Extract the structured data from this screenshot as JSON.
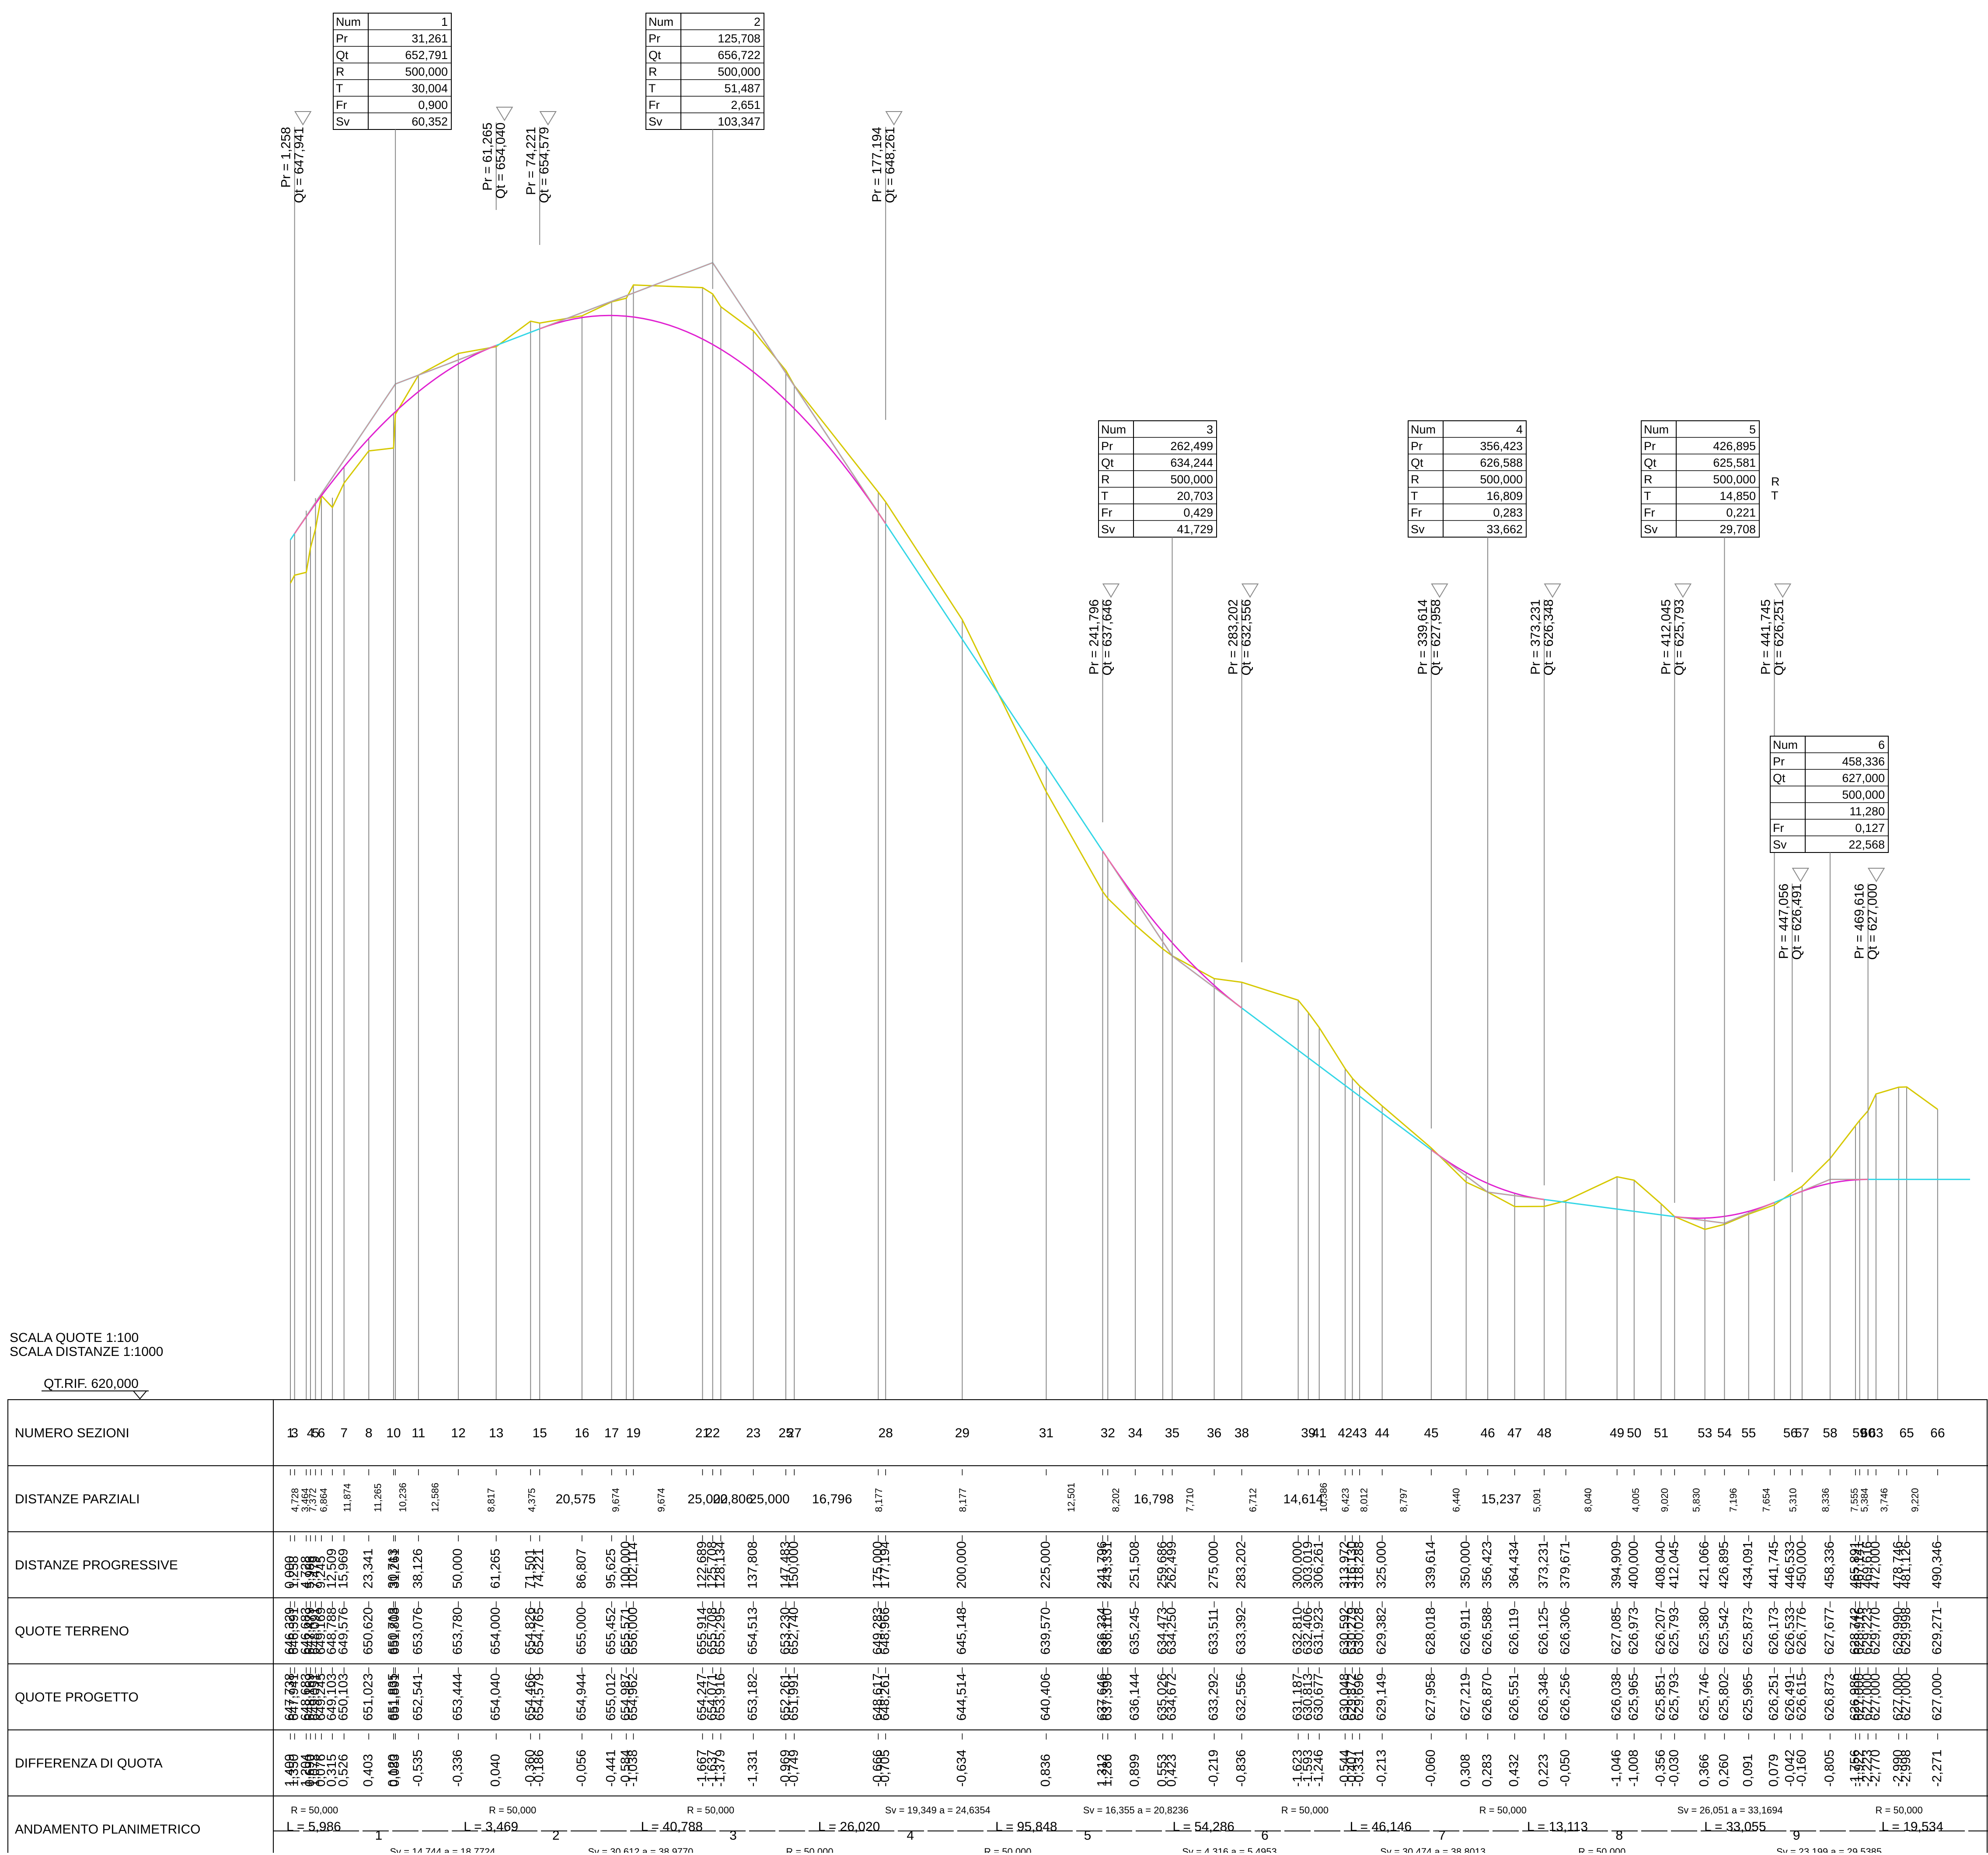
{
  "scale": {
    "heights": "SCALA QUOTE 1:100",
    "distances": "SCALA DISTANZE 1:1000",
    "reference": "QT.RIF. 620,000"
  },
  "colors": {
    "terrain": "#d6c800",
    "tangent": "#f08a8a",
    "grade": "#33d6e6",
    "curve": "#e020d0",
    "grid": "#888888"
  },
  "band_titles": [
    "NUMERO SEZIONI",
    "DISTANZE PARZIALI",
    "DISTANZE PROGRESSIVE",
    "QUOTE TERRENO",
    "QUOTE PROGETTO",
    "DIFFERENZA DI QUOTA",
    "ANDAMENTO PLANIMETRICO"
  ],
  "box_keys": [
    "Num",
    "Pr",
    "Qt",
    "R",
    "T",
    "Fr",
    "Sv"
  ],
  "vertical_curves": [
    {
      "Num": "1",
      "Pr": "31,261",
      "Qt": "652,791",
      "R": "500,000",
      "T": "30,004",
      "Fr": "0,900",
      "Sv": "60,352"
    },
    {
      "Num": "2",
      "Pr": "125,708",
      "Qt": "656,722",
      "R": "500,000",
      "T": "51,487",
      "Fr": "2,651",
      "Sv": "103,347"
    },
    {
      "Num": "3",
      "Pr": "262,499",
      "Qt": "634,244",
      "R": "500,000",
      "T": "20,703",
      "Fr": "0,429",
      "Sv": "41,729"
    },
    {
      "Num": "4",
      "Pr": "356,423",
      "Qt": "626,588",
      "R": "500,000",
      "T": "16,809",
      "Fr": "0,283",
      "Sv": "33,662"
    },
    {
      "Num": "5",
      "Pr": "426,895",
      "Qt": "625,581",
      "R": "500,000",
      "T": "14,850",
      "Fr": "0,221",
      "Sv": "29,708"
    },
    {
      "Num": "6",
      "Pr": "458,336",
      "Qt": "627,000",
      "R": "500,000",
      "T": "11,280",
      "Fr": "0,127",
      "Sv": "22,568"
    }
  ],
  "loose_labels": [
    "R",
    "T"
  ],
  "grade_breaks": [
    {
      "pr": "Pr = 1,258",
      "qt": "Qt = 647,941"
    },
    {
      "pr": "Pr = 61,265",
      "qt": "Qt = 654,040"
    },
    {
      "pr": "Pr = 74,221",
      "qt": "Qt = 654,579"
    },
    {
      "pr": "Pr = 177,194",
      "qt": "Qt = 648,261"
    },
    {
      "pr": "Pr = 241,796",
      "qt": "Qt = 637,646"
    },
    {
      "pr": "Pr = 283,202",
      "qt": "Qt = 632,556"
    },
    {
      "pr": "Pr = 339,614",
      "qt": "Qt = 627,958"
    },
    {
      "pr": "Pr = 373,231",
      "qt": "Qt = 626,348"
    },
    {
      "pr": "Pr = 412,045",
      "qt": "Qt = 625,793"
    },
    {
      "pr": "Pr = 441,745",
      "qt": "Qt = 626,251"
    },
    {
      "pr": "Pr = 447,056",
      "qt": "Qt = 626,491"
    },
    {
      "pr": "Pr = 469,616",
      "qt": "Qt = 627,000"
    }
  ],
  "chart_data": {
    "type": "line",
    "xlabel": "DISTANZE PROGRESSIVE",
    "ylabel": "QUOTE",
    "xlim": [
      0,
      500
    ],
    "ylim": [
      620,
      659
    ],
    "series": [
      {
        "key": "terrain",
        "x": [
          0,
          1.258,
          4.728,
          5.986,
          7.479,
          9.245,
          12.509,
          15.969,
          23.341,
          30.713,
          31.261,
          38.126,
          50,
          61.265,
          71.501,
          74.221,
          86.807,
          95.625,
          100,
          102.114,
          122.689,
          125.708,
          128.134,
          137.808,
          147.483,
          150,
          175,
          177.194,
          200,
          225,
          241.796,
          243.331,
          251.508,
          259.686,
          262.499,
          275,
          283.202,
          300,
          303.019,
          306.261,
          313.972,
          316.13,
          318.288,
          325,
          339.614,
          350,
          356.423,
          364.434,
          373.231,
          379.671,
          394.909,
          400,
          408.04,
          412.045,
          421.066,
          426.895,
          434.091,
          441.745,
          446.533,
          450,
          458.336,
          465.891,
          467.141,
          469.616,
          472,
          478.746,
          481.126,
          490.346
        ],
        "y": [
          646.329,
          646.591,
          646.683,
          647.479,
          648.091,
          649.169,
          648.788,
          649.576,
          650.62,
          650.713,
          651.808,
          653.076,
          653.78,
          654,
          654.826,
          654.765,
          655,
          655.452,
          655.571,
          656,
          655.914,
          655.708,
          655.295,
          654.513,
          653.23,
          652.74,
          649.283,
          648.966,
          645.148,
          639.57,
          636.334,
          636.11,
          635.245,
          634.473,
          634.25,
          633.511,
          633.392,
          632.81,
          632.406,
          631.923,
          630.592,
          630.279,
          630.028,
          629.382,
          628.018,
          626.911,
          626.588,
          626.119,
          626.125,
          626.306,
          627.085,
          626.973,
          626.207,
          625.793,
          625.38,
          625.542,
          625.873,
          626.173,
          626.533,
          626.776,
          627.677,
          628.742,
          628.916,
          629.223,
          629.77,
          629.99,
          629.998,
          629.271
        ]
      },
      {
        "key": "project",
        "x": [
          0,
          1.258,
          4.728,
          5.986,
          7.479,
          9.245,
          12.509,
          15.969,
          23.341,
          30.713,
          31.261,
          38.126,
          50,
          61.265,
          71.501,
          74.221,
          86.807,
          95.625,
          100,
          102.114,
          122.689,
          125.708,
          128.134,
          137.808,
          147.483,
          150,
          175,
          177.194,
          200,
          225,
          241.796,
          243.331,
          251.508,
          259.686,
          262.499,
          275,
          283.202,
          300,
          303.019,
          306.261,
          313.972,
          316.13,
          318.288,
          325,
          339.614,
          350,
          356.423,
          364.434,
          373.231,
          379.671,
          394.909,
          400,
          408.04,
          412.045,
          421.066,
          426.895,
          434.091,
          441.745,
          446.533,
          450,
          458.336,
          465.891,
          467.141,
          469.616,
          472,
          478.746,
          481.126,
          490.346
        ],
        "y": [
          647.738,
          647.941,
          648.683,
          648.169,
          649.091,
          649.245,
          649.103,
          650.103,
          651.023,
          651.835,
          651.891,
          652.541,
          653.444,
          654.04,
          654.466,
          654.579,
          654.944,
          655.012,
          654.987,
          654.962,
          654.247,
          654.071,
          653.916,
          653.182,
          652.261,
          651.991,
          648.617,
          648.261,
          644.514,
          640.406,
          637.646,
          637.396,
          636.144,
          635.026,
          634.672,
          633.292,
          632.556,
          631.187,
          630.813,
          630.677,
          630.048,
          629.872,
          629.696,
          629.149,
          627.958,
          627.219,
          626.87,
          626.551,
          626.348,
          626.256,
          626.038,
          625.965,
          625.851,
          625.793,
          625.746,
          625.802,
          625.965,
          626.251,
          626.491,
          626.615,
          626.873,
          626.986,
          627,
          627,
          627,
          627,
          627,
          627
        ]
      }
    ]
  },
  "sections": {
    "numbers": [
      "1",
      "3",
      "4",
      "5",
      "6",
      "7",
      "8",
      "10",
      "11",
      "12",
      "13",
      "15",
      "16",
      "17",
      "19",
      "21",
      "22",
      "23",
      "25",
      "27",
      "28",
      "29",
      "31",
      "32",
      "34",
      "35",
      "36",
      "38",
      "39",
      "41",
      "42",
      "43",
      "44",
      "45",
      "46",
      "47",
      "48",
      "49",
      "50",
      "51",
      "53",
      "54",
      "55",
      "56",
      "57",
      "58",
      "59",
      "60",
      "63",
      "65",
      "66"
    ],
    "partial_distances": [
      "4,728",
      "3,464",
      "7,372",
      "6,864",
      "11,874",
      "11,265",
      "10,236",
      "12,586",
      "8,817",
      "4,375",
      "20,575",
      "9,674",
      "9,674",
      "25,000",
      "22,806",
      "25,000",
      "16,796",
      "8,177",
      "8,177",
      "12,501",
      "8,202",
      "16,798",
      "7,710",
      "6,712",
      "14,614",
      "10,386",
      "6,423",
      "8,012",
      "8,797",
      "6,440",
      "15,237",
      "5,091",
      "8,040",
      "4,005",
      "9,020",
      "5,830",
      "7,196",
      "7,654",
      "5,310",
      "8,336",
      "7,555",
      "5,384",
      "3,746",
      "9,220"
    ],
    "progressive": [
      "0,000",
      "1,258",
      "4,728",
      "5,986",
      "7,479",
      "9,245",
      "12,509",
      "15,969",
      "23,341",
      "30,713",
      "31,261",
      "38,126",
      "50,000",
      "61,265",
      "71,501",
      "74,221",
      "86,807",
      "95,625",
      "100,000",
      "102,114",
      "122,689",
      "125,708",
      "128,134",
      "137,808",
      "147,483",
      "150,000",
      "175,000",
      "177,194",
      "200,000",
      "225,000",
      "241,796",
      "243,331",
      "251,508",
      "259,686",
      "262,499",
      "275,000",
      "283,202",
      "300,000",
      "303,019",
      "306,261",
      "313,972",
      "316,130",
      "318,288",
      "325,000",
      "339,614",
      "350,000",
      "356,423",
      "364,434",
      "373,231",
      "379,671",
      "394,909",
      "400,000",
      "408,040",
      "412,045",
      "421,066",
      "426,895",
      "434,091",
      "441,745",
      "446,533",
      "450,000",
      "458,336",
      "465,891",
      "467,141",
      "469,616",
      "472,000",
      "478,746",
      "481,126",
      "490,346"
    ],
    "terrain": [
      "646,329",
      "646,591",
      "646,683",
      "647,479",
      "648,091",
      "649,169",
      "648,788",
      "649,576",
      "650,620",
      "650,713",
      "651,808",
      "653,076",
      "653,780",
      "654,000",
      "654,826",
      "654,765",
      "655,000",
      "655,452",
      "655,571",
      "656,000",
      "655,914",
      "655,708",
      "655,295",
      "654,513",
      "653,230",
      "652,740",
      "649,283",
      "648,966",
      "645,148",
      "639,570",
      "636,334",
      "636,110",
      "635,245",
      "634,473",
      "634,250",
      "633,511",
      "633,392",
      "632,810",
      "632,406",
      "631,923",
      "630,592",
      "630,279",
      "630,028",
      "629,382",
      "628,018",
      "626,911",
      "626,588",
      "626,119",
      "626,125",
      "626,306",
      "627,085",
      "626,973",
      "626,207",
      "625,793",
      "625,380",
      "625,542",
      "625,873",
      "626,173",
      "626,533",
      "626,776",
      "627,677",
      "628,742",
      "628,916",
      "629,223",
      "629,770",
      "629,990",
      "629,998",
      "629,271"
    ],
    "project": [
      "647,738",
      "647,941",
      "648,683",
      "648,169",
      "649,091",
      "649,245",
      "649,103",
      "650,103",
      "651,023",
      "651,835",
      "651,891",
      "652,541",
      "653,444",
      "654,040",
      "654,466",
      "654,579",
      "654,944",
      "655,012",
      "654,987",
      "654,962",
      "654,247",
      "654,071",
      "653,916",
      "653,182",
      "652,261",
      "651,991",
      "648,617",
      "648,261",
      "644,514",
      "640,406",
      "637,646",
      "637,396",
      "636,144",
      "635,026",
      "634,672",
      "633,292",
      "632,556",
      "631,187",
      "630,813",
      "630,677",
      "630,048",
      "629,872",
      "629,696",
      "629,149",
      "627,958",
      "627,219",
      "626,870",
      "626,551",
      "626,348",
      "626,256",
      "626,038",
      "625,965",
      "625,851",
      "625,793",
      "625,746",
      "625,802",
      "625,965",
      "626,251",
      "626,491",
      "626,615",
      "626,873",
      "626,986",
      "627,000",
      "627,000",
      "627,000",
      "627,000",
      "627,000",
      "627,000"
    ],
    "difference": [
      "1,409",
      "1,350",
      "1,204",
      "0,690",
      "1,078",
      "0,076",
      "0,315",
      "0,526",
      "0,403",
      "0,120",
      "0,083",
      "-0,535",
      "-0,336",
      "0,040",
      "-0,360",
      "-0,186",
      "-0,056",
      "-0,441",
      "-0,584",
      "-1,038",
      "-1,667",
      "-1,637",
      "-1,379",
      "-1,331",
      "-0,969",
      "-0,749",
      "-0,666",
      "-0,705",
      "-0,634",
      "0,836",
      "1,312",
      "1,286",
      "0,899",
      "0,553",
      "0,423",
      "-0,219",
      "-0,836",
      "-1,623",
      "-1,593",
      "-1,246",
      "-0,544",
      "-0,407",
      "-0,331",
      "-0,213",
      "-0,060",
      "0,308",
      "0,283",
      "0,432",
      "0,223",
      "-0,050",
      "-1,046",
      "-1,008",
      "-0,356",
      "-0,030",
      "0,366",
      "0,260",
      "0,091",
      "0,079",
      "-0,042",
      "-0,160",
      "-0,805",
      "-1,756",
      "-1,922",
      "-2,223",
      "-2,770",
      "-2,990",
      "-2,998",
      "-2,271"
    ]
  },
  "planimetry": {
    "elements": [
      "L = 5,986",
      "1",
      "L = 3,469",
      "2",
      "L = 40,788",
      "3",
      "L = 26,020",
      "4",
      "L = 95,848",
      "5",
      "L = 54,286",
      "6",
      "L = 46,146",
      "7",
      "L = 13,113",
      "8",
      "L = 33,055",
      "9",
      "L = 19,534"
    ],
    "curve_info": [
      "R = 50,000",
      "Sv = 14,744  a = 18,7724",
      "R = 50,000",
      "Sv = 30,612  a = 38,9770",
      "R = 50,000",
      "R = 50,000",
      "Sv = 19,349  a = 24,6354",
      "R = 50,000",
      "Sv = 16,355  a = 20,8236",
      "Sv = 4,316  a = 5,4953",
      "R = 50,000",
      "Sv = 30,474  a = 38,8013",
      "R = 50,000",
      "R = 50,000",
      "Sv = 26,051  a = 33,1694",
      "Sv = 23,199  a = 29,5385",
      "R = 50,000"
    ]
  }
}
